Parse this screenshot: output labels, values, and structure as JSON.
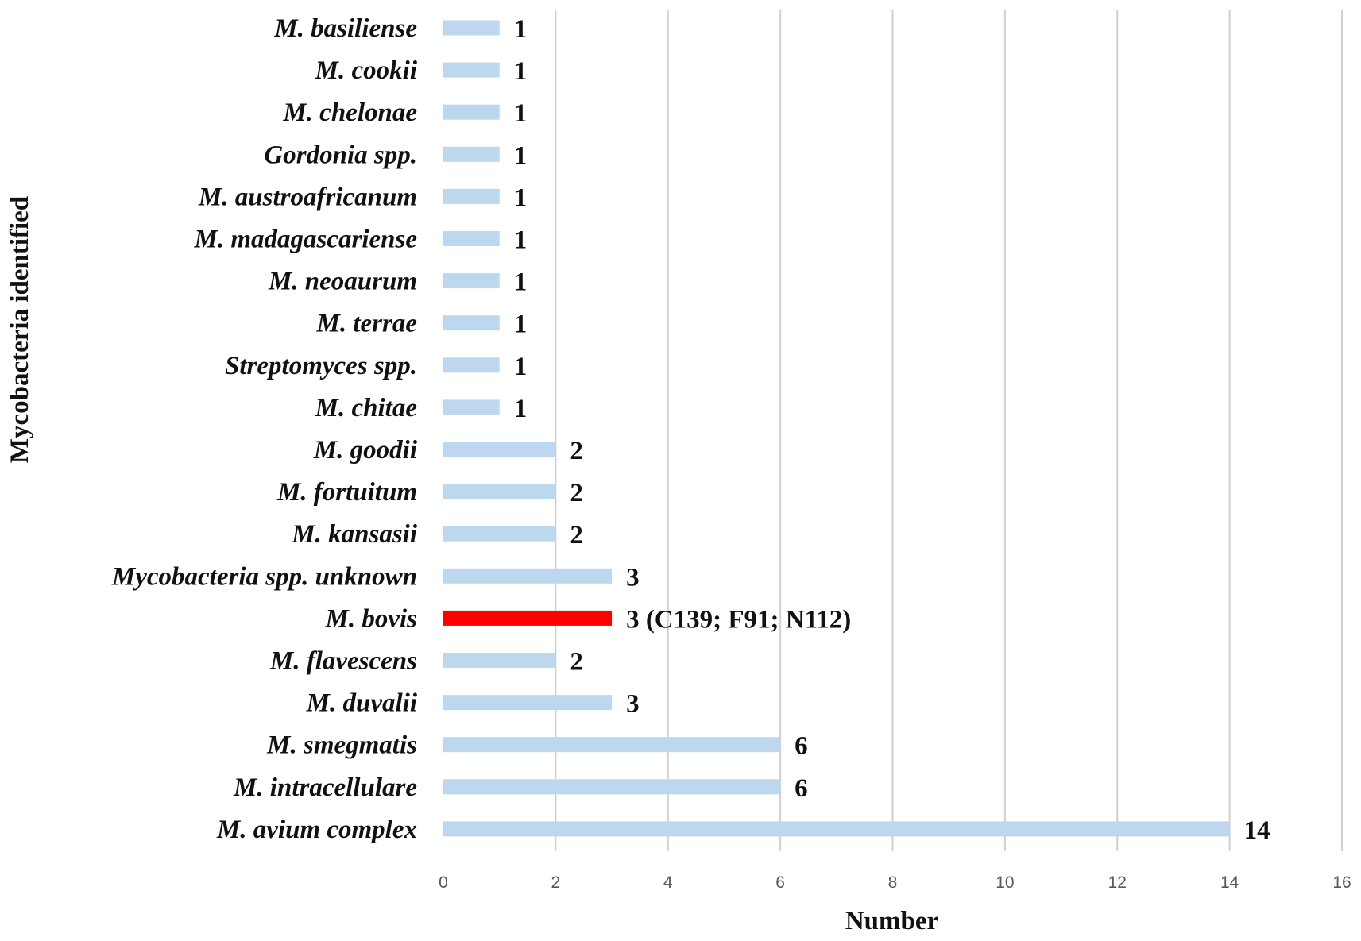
{
  "chart_data": {
    "type": "bar",
    "orientation": "horizontal",
    "title": "",
    "xlabel": "Number",
    "ylabel": "Mycobacteria identified",
    "xlim": [
      0,
      16
    ],
    "xticks": [
      0,
      2,
      4,
      6,
      8,
      10,
      12,
      14,
      16
    ],
    "grid": "vertical",
    "legend": "none",
    "colors": {
      "default": "#bdd7ee",
      "highlight": "#ff0000"
    },
    "categories": [
      "M. basiliense",
      "M. cookii",
      "M. chelonae",
      "Gordonia spp.",
      "M. austroafricanum",
      "M. madagascariense",
      "M. neoaurum",
      "M. terrae",
      "Streptomyces spp.",
      "M. chitae",
      "M. goodii",
      "M. fortuitum",
      "M. kansasii",
      "Mycobacteria spp. unknown",
      "M. bovis",
      "M. flavescens",
      "M. duvalii",
      "M. smegmatis",
      "M. intracellulare",
      "M. avium complex"
    ],
    "values": [
      1,
      1,
      1,
      1,
      1,
      1,
      1,
      1,
      1,
      1,
      2,
      2,
      2,
      3,
      3,
      2,
      3,
      6,
      6,
      14
    ],
    "data_labels": [
      "1",
      "1",
      "1",
      "1",
      "1",
      "1",
      "1",
      "1",
      "1",
      "1",
      "2",
      "2",
      "2",
      "3",
      "3 (C139; F91; N112)",
      "2",
      "3",
      "6",
      "6",
      "14"
    ],
    "highlight_category": "M. bovis"
  }
}
